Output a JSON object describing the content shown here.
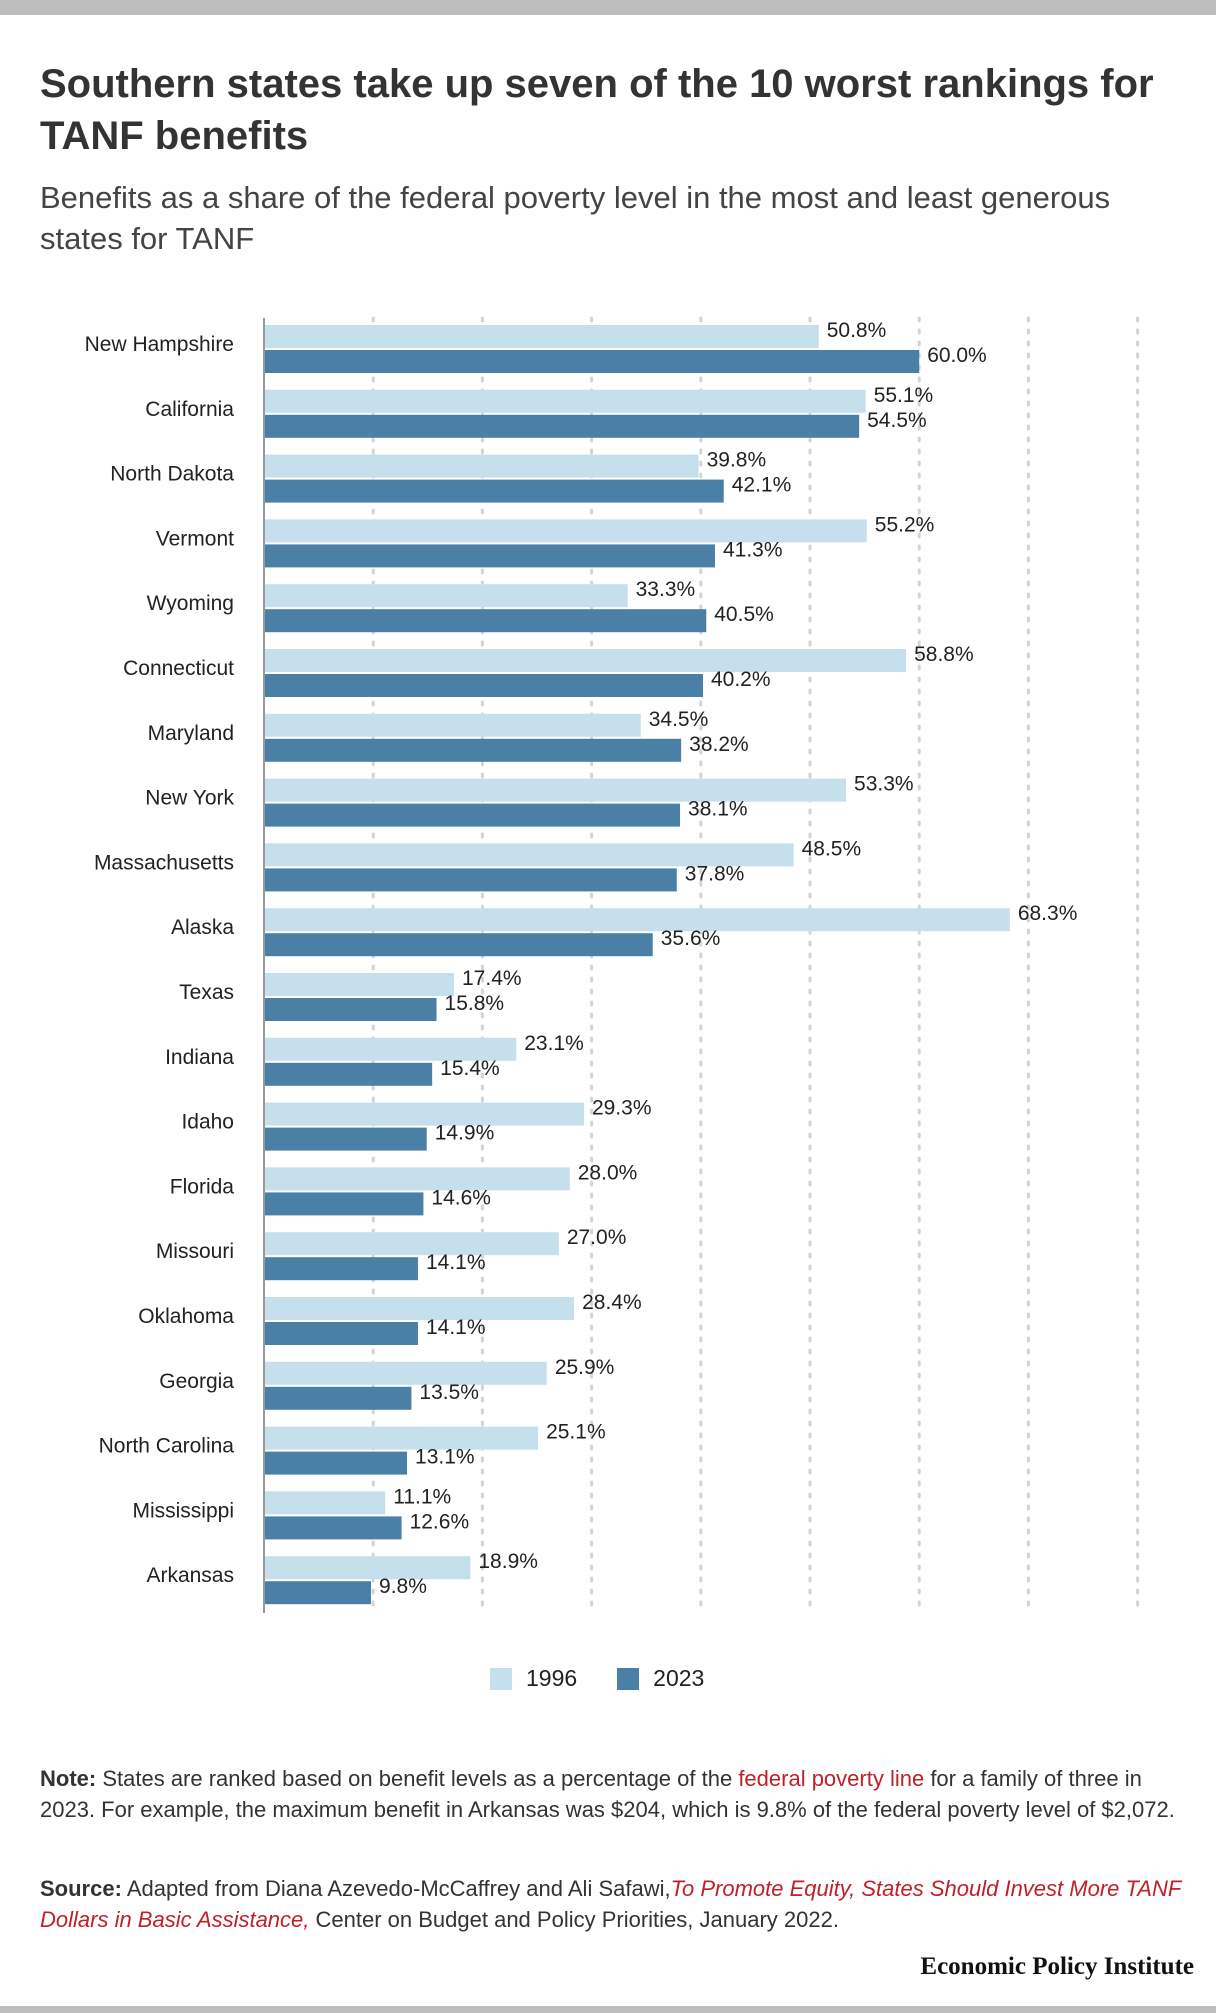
{
  "title": "Southern states take up seven of the 10 worst rankings for TANF benefits",
  "subtitle": "Benefits as a share of the federal poverty level in the most and least generous states for TANF",
  "colors": {
    "series_1996": "#c5dfec",
    "series_2023": "#4a80a6",
    "link_red": "#c0202a"
  },
  "chart_data": {
    "type": "bar",
    "orientation": "horizontal",
    "categories": [
      "New Hampshire",
      "California",
      "North Dakota",
      "Vermont",
      "Wyoming",
      "Connecticut",
      "Maryland",
      "New York",
      "Massachusetts",
      "Alaska",
      "Texas",
      "Indiana",
      "Idaho",
      "Florida",
      "Missouri",
      "Oklahoma",
      "Georgia",
      "North Carolina",
      "Mississippi",
      "Arkansas"
    ],
    "series": [
      {
        "name": "1996",
        "values": [
          50.8,
          55.1,
          39.8,
          55.2,
          33.3,
          58.8,
          34.5,
          53.3,
          48.5,
          68.3,
          17.4,
          23.1,
          29.3,
          28.0,
          27.0,
          28.4,
          25.9,
          25.1,
          11.1,
          18.9
        ],
        "labels": [
          "50.8%",
          "55.1%",
          "39.8%",
          "55.2%",
          "33.3%",
          "58.8%",
          "34.5%",
          "53.3%",
          "48.5%",
          "68.3%",
          "17.4%",
          "23.1%",
          "29.3%",
          "28.0%",
          "27.0%",
          "28.4%",
          "25.9%",
          "25.1%",
          "11.1%",
          "18.9%"
        ]
      },
      {
        "name": "2023",
        "values": [
          60.0,
          54.5,
          42.1,
          41.3,
          40.5,
          40.2,
          38.2,
          38.1,
          37.8,
          35.6,
          15.8,
          15.4,
          14.9,
          14.6,
          14.1,
          14.1,
          13.5,
          13.1,
          12.6,
          9.8
        ],
        "labels": [
          "60.0%",
          "54.5%",
          "42.1%",
          "41.3%",
          "40.5%",
          "40.2%",
          "38.2%",
          "38.1%",
          "37.8%",
          "35.6%",
          "15.8%",
          "15.4%",
          "14.9%",
          "14.6%",
          "14.1%",
          "14.1%",
          "13.5%",
          "13.1%",
          "12.6%",
          "9.8%"
        ]
      }
    ],
    "xlim": [
      0,
      80
    ],
    "grid": true,
    "legend_position": "bottom-center"
  },
  "legend": {
    "label_1996": "1996",
    "label_2023": "2023"
  },
  "note": {
    "label": "Note:",
    "text_before": " States are ranked based on benefit levels as a percentage of the ",
    "link": "federal poverty line",
    "text_after": " for a family of three in 2023. For example, the maximum benefit in Arkansas was $204, which is 9.8% of the federal poverty level of $2,072."
  },
  "source": {
    "label": "Source:",
    "text_before": " Adapted from Diana Azevedo-McCaffrey and Ali Safawi,",
    "link": "To Promote Equity, States Should Invest More TANF Dollars in Basic Assistance,",
    "text_after": " Center on Budget and Policy Priorities, January 2022."
  },
  "brand": "Economic Policy Institute"
}
